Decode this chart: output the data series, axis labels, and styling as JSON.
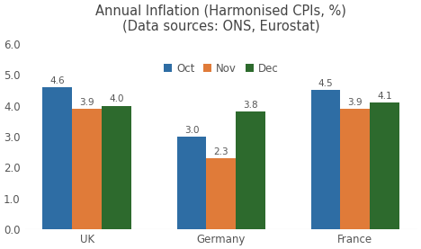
{
  "title_line1": "Annual Inflation (Harmonised CPIs, %)",
  "title_line2": "(Data sources: ONS, Eurostat)",
  "categories": [
    "UK",
    "Germany",
    "France"
  ],
  "months": [
    "Oct",
    "Nov",
    "Dec"
  ],
  "values": {
    "Oct": [
      4.6,
      3.0,
      4.5
    ],
    "Nov": [
      3.9,
      2.3,
      3.9
    ],
    "Dec": [
      4.0,
      3.8,
      4.1
    ]
  },
  "colors": {
    "Oct": "#2e6da4",
    "Nov": "#e07b39",
    "Dec": "#2d6a2d"
  },
  "ylim": [
    0,
    6.2
  ],
  "yticks": [
    0.0,
    1.0,
    2.0,
    3.0,
    4.0,
    5.0,
    6.0
  ],
  "bar_width": 0.22,
  "background_color": "#ffffff",
  "label_fontsize": 7.5,
  "title_fontsize": 10.5,
  "tick_fontsize": 8.5,
  "legend_fontsize": 8.5,
  "value_color": "#555555"
}
